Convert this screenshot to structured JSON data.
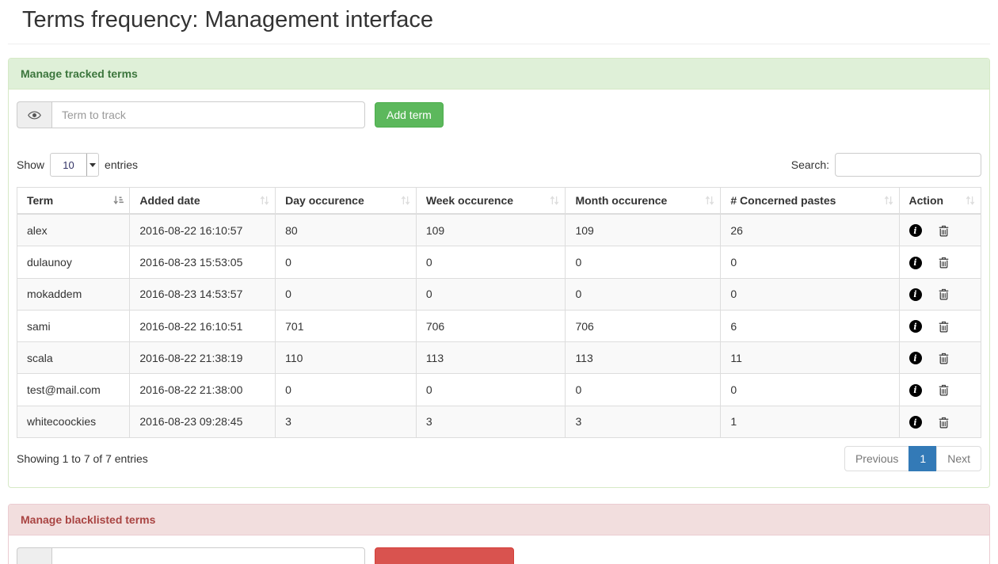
{
  "page": {
    "title": "Terms frequency: Management interface"
  },
  "tracked_panel": {
    "title": "Manage tracked terms",
    "term_input_placeholder": "Term to track",
    "term_input_value": "",
    "add_button_label": "Add term",
    "controls": {
      "show_label": "Show",
      "page_length": "10",
      "entries_label": "entries",
      "search_label": "Search:",
      "search_value": ""
    },
    "table": {
      "columns": [
        "Term",
        "Added date",
        "Day occurence",
        "Week occurence",
        "Month occurence",
        "# Concerned pastes",
        "Action"
      ],
      "sorted_column": "Term",
      "sort_direction": "ascending",
      "rows": [
        {
          "term": "alex",
          "added": "2016-08-22 16:10:57",
          "day": "80",
          "week": "109",
          "month": "109",
          "pastes": "26"
        },
        {
          "term": "dulaunoy",
          "added": "2016-08-23 15:53:05",
          "day": "0",
          "week": "0",
          "month": "0",
          "pastes": "0"
        },
        {
          "term": "mokaddem",
          "added": "2016-08-23 14:53:57",
          "day": "0",
          "week": "0",
          "month": "0",
          "pastes": "0"
        },
        {
          "term": "sami",
          "added": "2016-08-22 16:10:51",
          "day": "701",
          "week": "706",
          "month": "706",
          "pastes": "6"
        },
        {
          "term": "scala",
          "added": "2016-08-22 21:38:19",
          "day": "110",
          "week": "113",
          "month": "113",
          "pastes": "11"
        },
        {
          "term": "test@mail.com",
          "added": "2016-08-22 21:38:00",
          "day": "0",
          "week": "0",
          "month": "0",
          "pastes": "0"
        },
        {
          "term": "whitecoockies",
          "added": "2016-08-23 09:28:45",
          "day": "3",
          "week": "3",
          "month": "3",
          "pastes": "1"
        }
      ],
      "info": "Showing 1 to 7 of 7 entries"
    },
    "pagination": {
      "previous_label": "Previous",
      "page": "1",
      "next_label": "Next"
    }
  },
  "blacklist_panel": {
    "title": "Manage blacklisted terms",
    "term_input_value": ""
  },
  "icons": {
    "term_addon": "eye-icon",
    "row_actions": [
      "info-circle-icon",
      "trash-icon"
    ],
    "sorted_header": "sort-ascending-icon",
    "unsorted_header": "sort-both-icon"
  },
  "colors": {
    "panel_success_bg": "#dff0d8",
    "panel_success_text": "#3c763d",
    "panel_success_border": "#d6e9c6",
    "panel_danger_bg": "#f2dede",
    "panel_danger_text": "#a94442",
    "panel_danger_border": "#ebccd1",
    "btn_success": "#5cb85c",
    "btn_danger": "#d9534f",
    "pagination_active": "#337ab7",
    "table_stripe": "#f9f9f9",
    "table_border": "#ddd"
  }
}
